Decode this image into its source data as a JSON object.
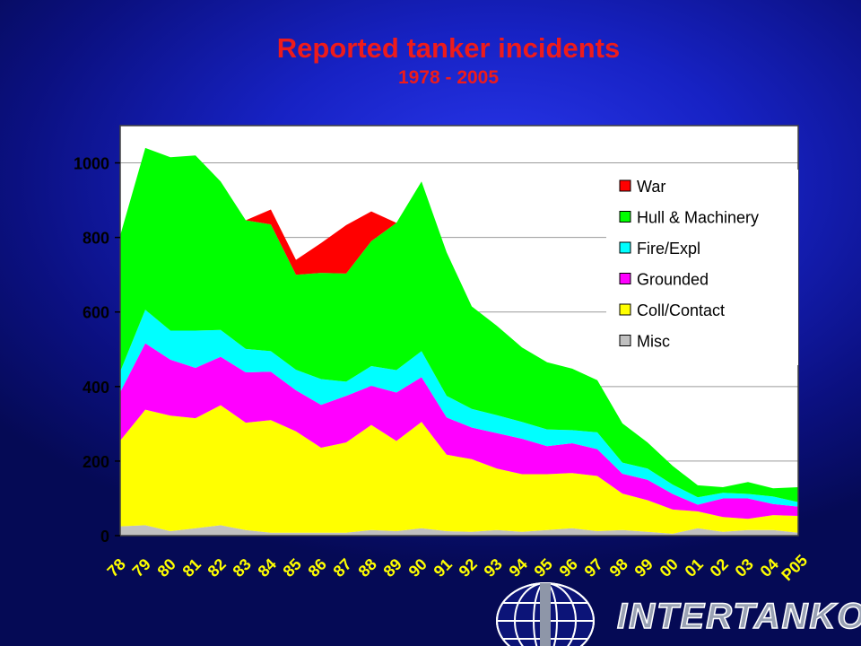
{
  "chart_data": {
    "type": "area",
    "stacked": true,
    "title": "Reported tanker incidents",
    "subtitle": "1978 - 2005",
    "x": [
      "78",
      "79",
      "80",
      "81",
      "82",
      "83",
      "84",
      "85",
      "86",
      "87",
      "88",
      "89",
      "90",
      "91",
      "92",
      "93",
      "94",
      "95",
      "96",
      "97",
      "98",
      "99",
      "00",
      "01",
      "02",
      "03",
      "04",
      "P05"
    ],
    "ylim": [
      0,
      1100
    ],
    "yticks": [
      0,
      200,
      400,
      600,
      800,
      1000
    ],
    "grid": true,
    "legend_position": "right",
    "series": [
      {
        "name": "Misc",
        "color": "#c0c0c0",
        "values": [
          25,
          28,
          12,
          20,
          28,
          15,
          8,
          8,
          8,
          8,
          15,
          12,
          20,
          12,
          10,
          15,
          10,
          15,
          20,
          12,
          15,
          10,
          5,
          20,
          10,
          15,
          15,
          8
        ]
      },
      {
        "name": "Coll/Contact",
        "color": "#ffff00",
        "values": [
          230,
          310,
          310,
          295,
          322,
          288,
          302,
          272,
          228,
          242,
          282,
          242,
          285,
          205,
          195,
          165,
          155,
          150,
          148,
          148,
          98,
          85,
          65,
          45,
          40,
          30,
          40,
          45
        ]
      },
      {
        "name": "Grounded",
        "color": "#ff00ff",
        "values": [
          130,
          178,
          150,
          135,
          130,
          135,
          130,
          110,
          115,
          125,
          105,
          130,
          120,
          100,
          85,
          95,
          95,
          75,
          80,
          72,
          53,
          55,
          42,
          18,
          50,
          55,
          30,
          25
        ]
      },
      {
        "name": "Fire/Expl",
        "color": "#00ffff",
        "values": [
          55,
          90,
          78,
          100,
          72,
          63,
          55,
          55,
          69,
          38,
          53,
          60,
          70,
          58,
          50,
          48,
          45,
          45,
          35,
          45,
          30,
          30,
          25,
          20,
          15,
          12,
          20,
          12
        ]
      },
      {
        "name": "Hull & Machinery",
        "color": "#00ff00",
        "values": [
          365,
          434,
          465,
          470,
          398,
          345,
          340,
          255,
          285,
          290,
          335,
          395,
          455,
          385,
          275,
          240,
          200,
          180,
          165,
          140,
          105,
          70,
          50,
          32,
          15,
          32,
          22,
          40
        ]
      },
      {
        "name": "War",
        "color": "#ff0000",
        "values": [
          0,
          0,
          0,
          0,
          0,
          0,
          40,
          40,
          80,
          130,
          80,
          0,
          0,
          0,
          0,
          0,
          0,
          0,
          0,
          0,
          0,
          0,
          0,
          0,
          0,
          0,
          0,
          0
        ]
      }
    ]
  },
  "logo": {
    "text": "INTERTANKO"
  }
}
